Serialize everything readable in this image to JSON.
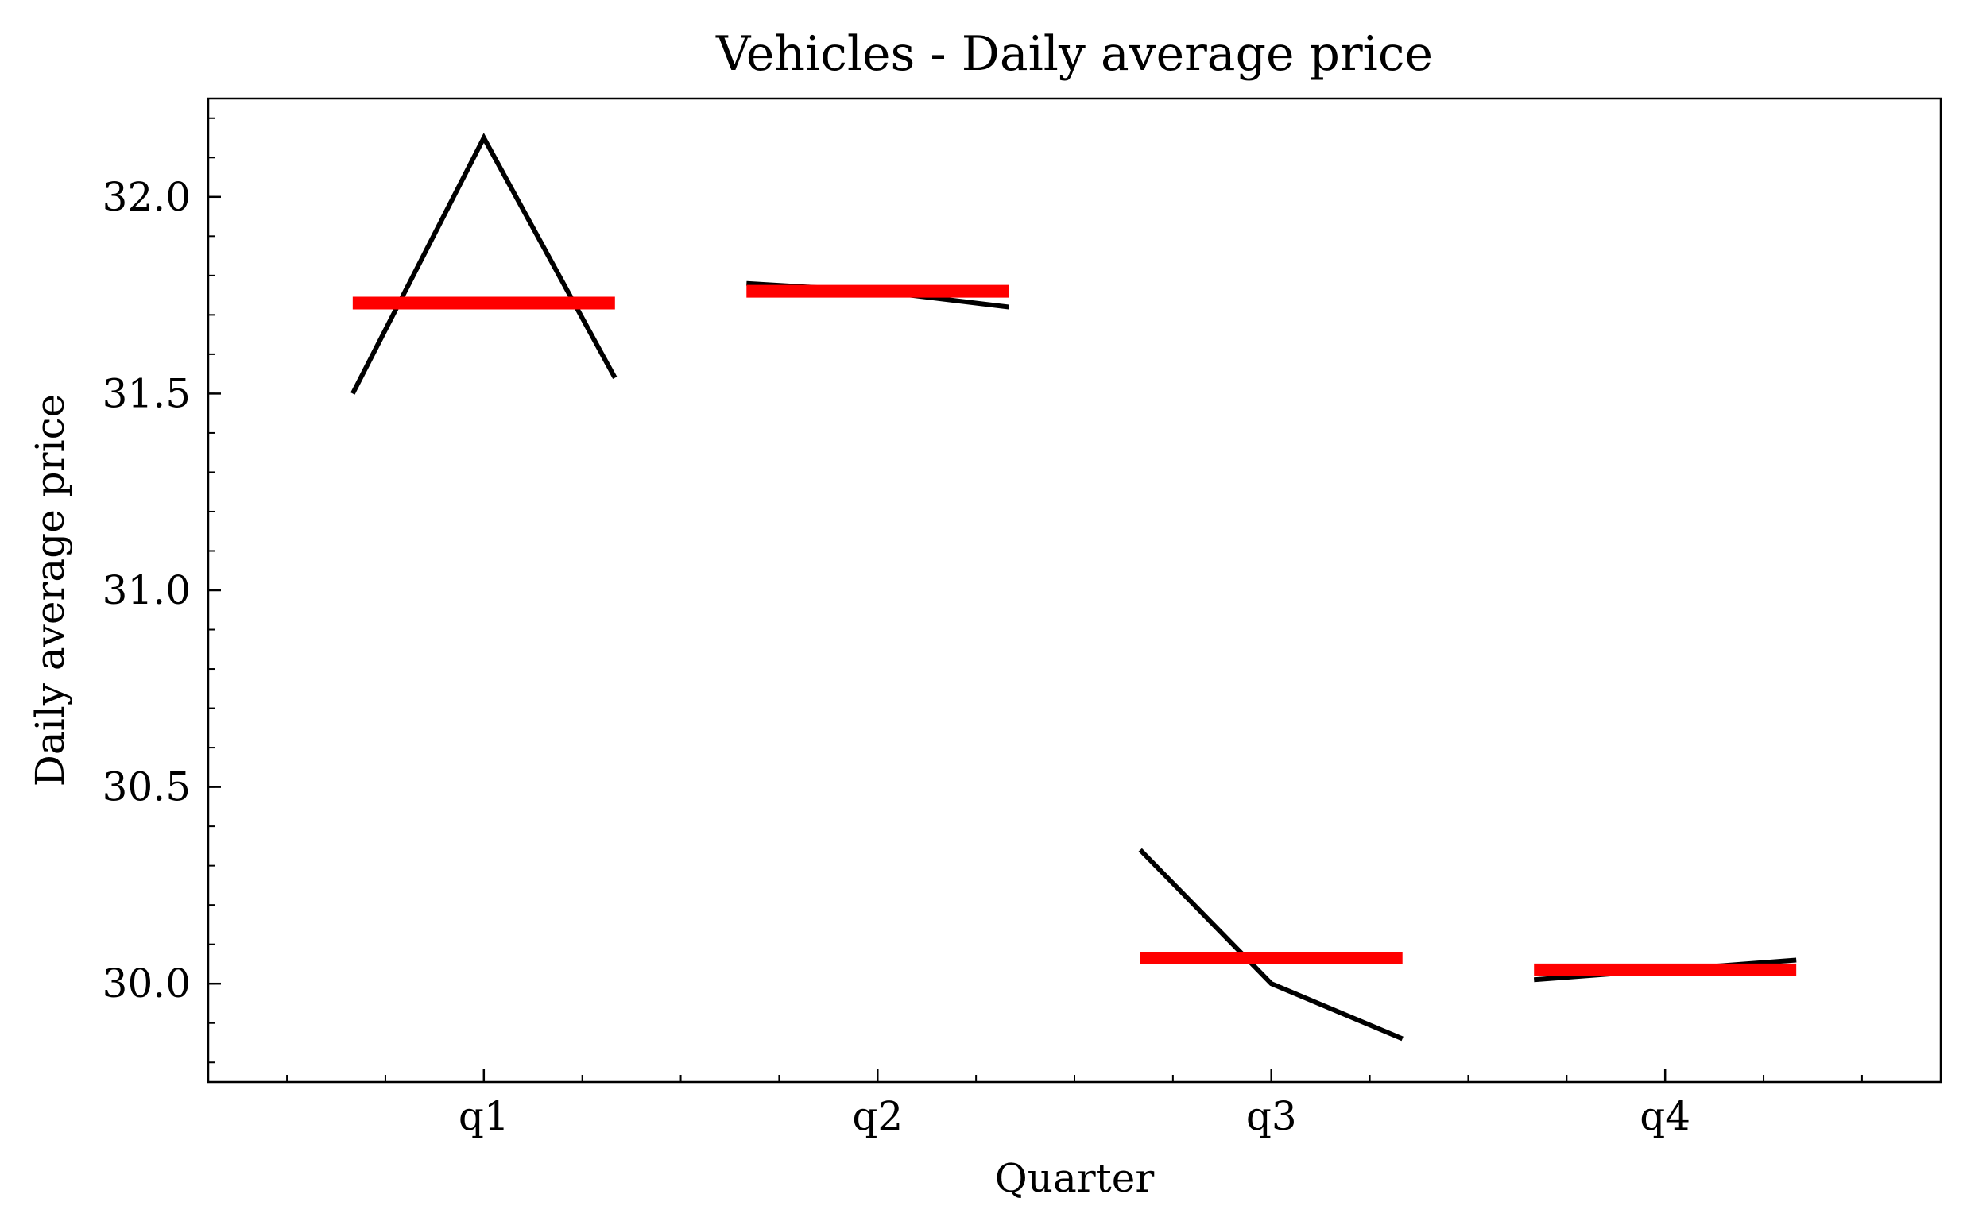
{
  "chart_data": {
    "type": "line",
    "title": "Vehicles - Daily average price",
    "xlabel": "Quarter",
    "ylabel": "Daily average price",
    "categories": [
      "q1",
      "q2",
      "q3",
      "q4"
    ],
    "ylim": [
      29.75,
      32.25
    ],
    "xlim": [
      -0.7,
      3.7
    ],
    "yticks": [
      30.0,
      30.5,
      31.0,
      31.5,
      32.0
    ],
    "ytick_labels": [
      "30.0",
      "30.5",
      "31.0",
      "31.5",
      "32.0"
    ],
    "grid": false,
    "series": [
      {
        "color": "#000000",
        "segments": [
          {
            "category": "q1",
            "x": [
              -0.333,
              0.0,
              0.333
            ],
            "y": [
              31.5,
              32.15,
              31.54
            ]
          },
          {
            "category": "q2",
            "x": [
              -0.333,
              0.0,
              0.333
            ],
            "y": [
              31.78,
              31.76,
              31.72
            ]
          },
          {
            "category": "q3",
            "x": [
              -0.333,
              0.0,
              0.333
            ],
            "y": [
              30.34,
              30.0,
              29.86
            ]
          },
          {
            "category": "q4",
            "x": [
              -0.333,
              0.0,
              0.333
            ],
            "y": [
              30.01,
              30.035,
              30.06
            ]
          }
        ]
      },
      {
        "color": "#ff0000",
        "means": [
          {
            "category": "q1",
            "value": 31.73
          },
          {
            "category": "q2",
            "value": 31.76
          },
          {
            "category": "q3",
            "value": 30.065
          },
          {
            "category": "q4",
            "value": 30.035
          }
        ]
      }
    ]
  }
}
